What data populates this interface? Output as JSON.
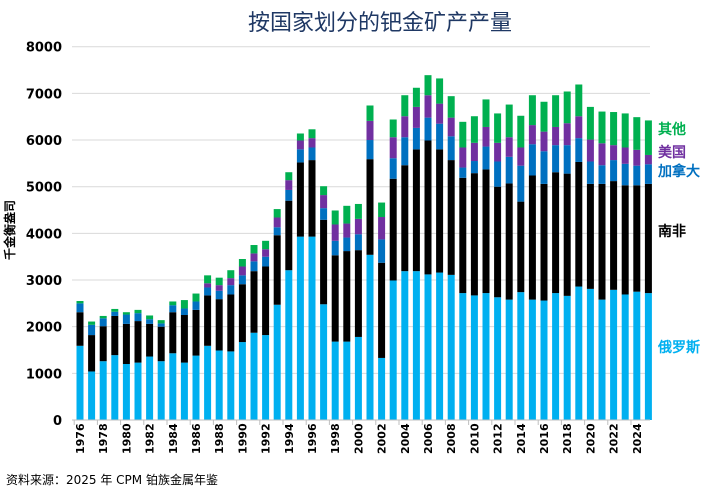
{
  "chart_data": {
    "type": "bar",
    "stacked": true,
    "title": "按国家划分的钯金矿产产量",
    "ylabel": "千金衡盎司",
    "xlabel": "",
    "source": "资料来源：2025 年 CPM 铂族金属年鉴",
    "ylim": [
      0,
      8000
    ],
    "yticks": [
      0,
      1000,
      2000,
      3000,
      4000,
      5000,
      6000,
      7000,
      8000
    ],
    "grid": true,
    "legend_placement": "right, inline labels",
    "x": [
      1976,
      1977,
      1978,
      1979,
      1980,
      1981,
      1982,
      1983,
      1984,
      1985,
      1986,
      1987,
      1988,
      1989,
      1990,
      1991,
      1992,
      1993,
      1994,
      1995,
      1996,
      1997,
      1998,
      1999,
      2000,
      2001,
      2002,
      2003,
      2004,
      2005,
      2006,
      2007,
      2008,
      2009,
      2010,
      2011,
      2012,
      2013,
      2014,
      2015,
      2016,
      2017,
      2018,
      2019,
      2020,
      2021,
      2022,
      2023,
      2024,
      2025
    ],
    "xtick_labels": [
      "1976",
      "1978",
      "1980",
      "1982",
      "1984",
      "1986",
      "1988",
      "1990",
      "1992",
      "1994",
      "1996",
      "1998",
      "2000",
      "2002",
      "2004",
      "2006",
      "2008",
      "2010",
      "2012",
      "2014",
      "2016",
      "2018",
      "2020",
      "2022",
      "2024"
    ],
    "series": [
      {
        "name": "俄罗斯",
        "color": "#00b0f0",
        "values": [
          1590,
          1040,
          1260,
          1390,
          1200,
          1230,
          1360,
          1260,
          1430,
          1230,
          1380,
          1590,
          1490,
          1470,
          1670,
          1870,
          1820,
          2470,
          3210,
          3930,
          3930,
          2480,
          1680,
          1680,
          1780,
          3540,
          1330,
          2990,
          3190,
          3190,
          3120,
          3160,
          3110,
          2720,
          2670,
          2720,
          2630,
          2580,
          2740,
          2580,
          2560,
          2720,
          2660,
          2860,
          2810,
          2580,
          2790,
          2690,
          2750,
          2720
        ]
      },
      {
        "name": "南非",
        "color": "#000000",
        "values": [
          720,
          780,
          750,
          840,
          860,
          890,
          700,
          740,
          880,
          1020,
          980,
          1080,
          1100,
          1220,
          1240,
          1320,
          1470,
          1490,
          1490,
          1590,
          1640,
          1810,
          1850,
          1940,
          1860,
          2050,
          2040,
          2180,
          2270,
          2610,
          2870,
          2640,
          2460,
          2470,
          2620,
          2650,
          2370,
          2490,
          1940,
          2660,
          2500,
          2590,
          2620,
          2670,
          2250,
          2480,
          2330,
          2340,
          2280,
          2340
        ]
      },
      {
        "name": "加拿大",
        "color": "#0070c0",
        "values": [
          190,
          220,
          170,
          90,
          200,
          170,
          100,
          70,
          150,
          140,
          180,
          170,
          180,
          200,
          190,
          210,
          210,
          170,
          230,
          280,
          270,
          250,
          310,
          290,
          340,
          410,
          500,
          440,
          600,
          460,
          490,
          550,
          510,
          220,
          260,
          490,
          540,
          570,
          770,
          670,
          700,
          580,
          610,
          510,
          480,
          400,
          450,
          460,
          420,
          420
        ]
      },
      {
        "name": "美国",
        "color": "#7030a0",
        "values": [
          0,
          0,
          0,
          0,
          0,
          0,
          0,
          0,
          0,
          0,
          0,
          90,
          120,
          150,
          190,
          170,
          160,
          210,
          210,
          190,
          200,
          280,
          350,
          300,
          330,
          410,
          480,
          450,
          450,
          450,
          480,
          430,
          400,
          430,
          390,
          420,
          400,
          420,
          390,
          410,
          420,
          390,
          470,
          470,
          470,
          470,
          320,
          350,
          340,
          200
        ]
      },
      {
        "name": "其他",
        "color": "#00b050",
        "values": [
          50,
          70,
          50,
          60,
          50,
          70,
          80,
          70,
          80,
          180,
          170,
          170,
          160,
          170,
          160,
          180,
          180,
          180,
          170,
          150,
          190,
          190,
          300,
          380,
          320,
          330,
          310,
          380,
          450,
          410,
          430,
          540,
          460,
          550,
          570,
          590,
          630,
          700,
          680,
          640,
          640,
          680,
          680,
          680,
          700,
          680,
          710,
          730,
          700,
          740
        ]
      }
    ]
  }
}
